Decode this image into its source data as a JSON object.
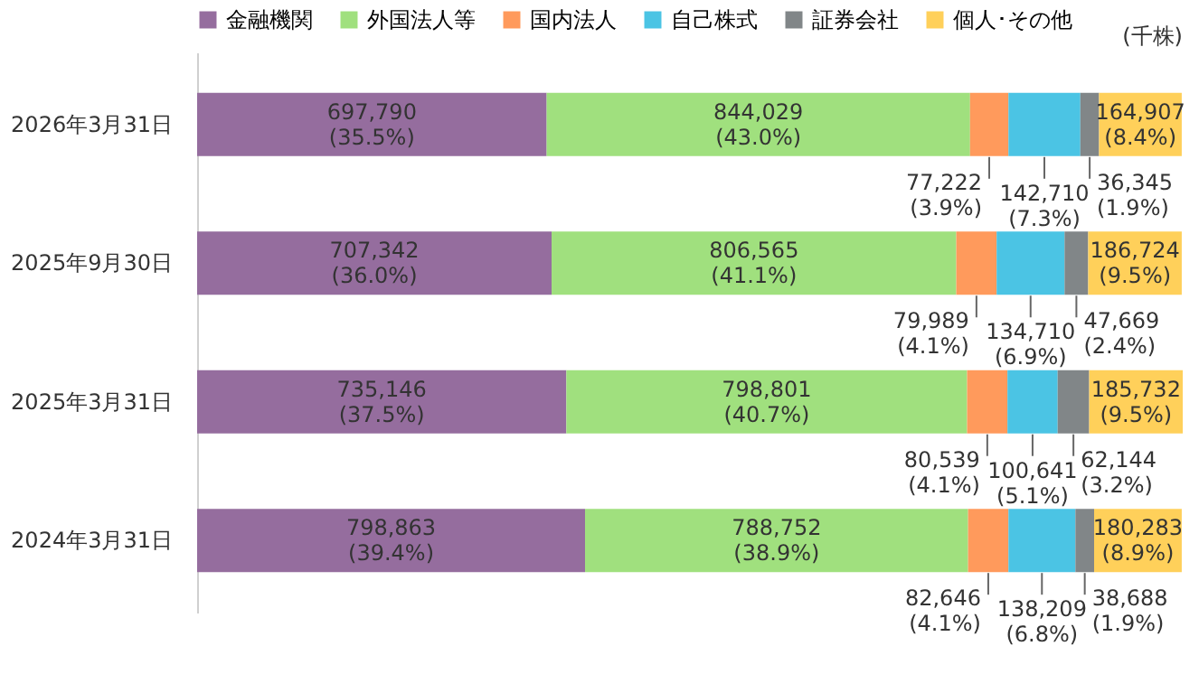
{
  "chart_data": {
    "type": "bar",
    "orientation": "horizontal",
    "stacked": true,
    "categories": [
      "2026年3月31日",
      "2025年9月30日",
      "2025年3月31日",
      "2024年3月31日"
    ],
    "series": [
      {
        "name": "金融機関",
        "color": "#956d9e",
        "values": [
          35.5,
          36.0,
          37.5,
          39.4
        ],
        "value_labels": [
          "697,790\n(35.5%)",
          "707,342\n(36.0%)",
          "735,146\n(37.5%)",
          "798,863\n(39.4%)"
        ]
      },
      {
        "name": "外国法人等",
        "color": "#a0e07e",
        "values": [
          43.0,
          41.1,
          40.7,
          38.9
        ],
        "value_labels": [
          "844,029\n(43.0%)",
          "806,565\n(41.1%)",
          "798,801\n(40.7%)",
          "788,752\n(38.9%)"
        ]
      },
      {
        "name": "国内法人",
        "color": "#ff9a5c",
        "values": [
          3.9,
          4.1,
          4.1,
          4.1
        ],
        "value_labels": [
          "77,222\n(3.9%)",
          "79,989\n(4.1%)",
          "80,539\n(4.1%)",
          "82,646\n(4.1%)"
        ]
      },
      {
        "name": "自己株式",
        "color": "#4bc4e4",
        "values": [
          7.3,
          6.9,
          5.1,
          6.8
        ],
        "value_labels": [
          "142,710\n(7.3%)",
          "134,710\n(6.9%)",
          "100,641\n(5.1%)",
          "138,209\n(6.8%)"
        ]
      },
      {
        "name": "証券会社",
        "color": "#818688",
        "values": [
          1.9,
          2.4,
          3.2,
          1.9
        ],
        "value_labels": [
          "36,345\n(1.9%)",
          "47,669\n(2.4%)",
          "62,144\n(3.2%)",
          "38,688\n(1.9%)"
        ]
      },
      {
        "name": "個人･その他",
        "color": "#ffd05a",
        "values": [
          8.4,
          9.5,
          9.5,
          8.9
        ],
        "value_labels": [
          "164,907\n(8.4%)",
          "186,724\n(9.5%)",
          "185,732\n(9.5%)",
          "180,283\n(8.9%)"
        ]
      }
    ],
    "legend": "top",
    "annotations": [
      "(千株)"
    ]
  }
}
